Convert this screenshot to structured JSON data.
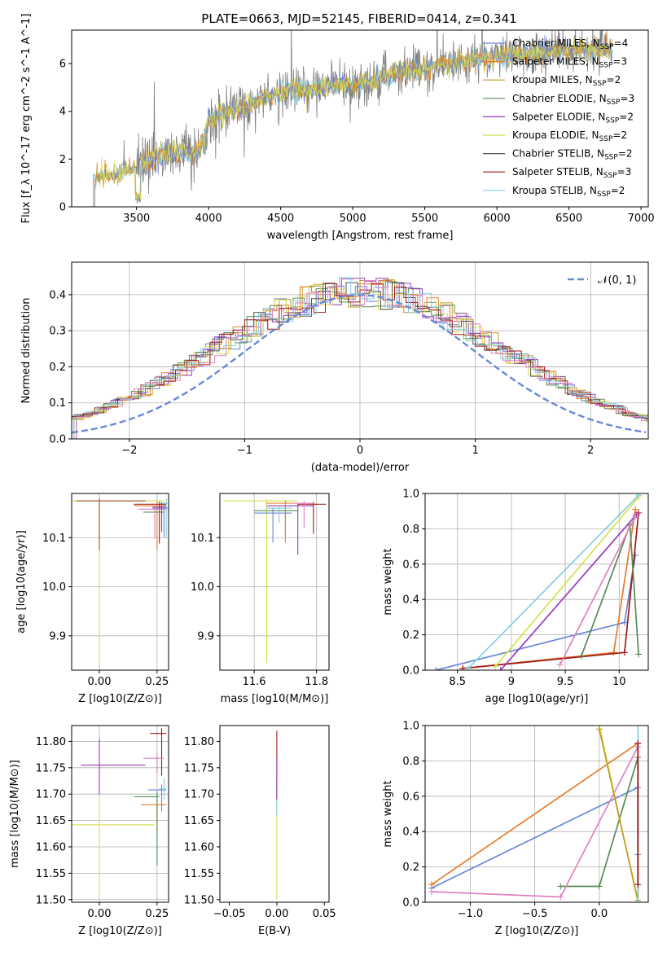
{
  "title": "PLATE=0663, MJD=52145, FIBERID=0414, z=0.341",
  "colors": {
    "chabrier_miles": "#6a88d6",
    "salpeter_miles": "#e87d2b",
    "kroupa_miles": "#c49a20",
    "chabrier_elodie": "#5a8a5a",
    "salpeter_elodie": "#9a3aba",
    "kroupa_elodie": "#d8e050",
    "chabrier_stelib": "#555555",
    "salpeter_stelib": "#a01818",
    "kroupa_stelib": "#80d0e0",
    "extra_pink": "#e080c0",
    "data": "#7f7f7f"
  },
  "chart_data": [
    {
      "id": "spectrum",
      "type": "line",
      "title": "PLATE=0663, MJD=52145, FIBERID=0414, z=0.341",
      "xlabel": "wavelength [Angstrom, rest frame]",
      "ylabel": "Flux [f_λ 10^-17 erg cm^-2 s^-1 A^-1]",
      "xlim": [
        3050,
        7050
      ],
      "ylim": [
        0,
        7.4
      ],
      "xticks": [
        3500,
        4000,
        4500,
        5000,
        5500,
        6000,
        6500,
        7000
      ],
      "yticks": [
        0,
        2,
        4,
        6
      ],
      "grid": false,
      "legend_position": "top-right",
      "legend": [
        {
          "label": "Chabrier MILES, N",
          "sub": "SSP",
          "suffix": "=4",
          "color": "#6a88d6"
        },
        {
          "label": "Salpeter MILES, N",
          "sub": "SSP",
          "suffix": "=3",
          "color": "#e87d2b"
        },
        {
          "label": "Kroupa MILES, N",
          "sub": "SSP",
          "suffix": "=2",
          "color": "#c49a20"
        },
        {
          "label": "Chabrier ELODIE, N",
          "sub": "SSP",
          "suffix": "=3",
          "color": "#5a8a5a"
        },
        {
          "label": "Salpeter ELODIE, N",
          "sub": "SSP",
          "suffix": "=2",
          "color": "#9a3aba"
        },
        {
          "label": "Kroupa ELODIE, N",
          "sub": "SSP",
          "suffix": "=2",
          "color": "#d8e050"
        },
        {
          "label": "Chabrier STELIB, N",
          "sub": "SSP",
          "suffix": "=2",
          "color": "#555555"
        },
        {
          "label": "Salpeter STELIB, N",
          "sub": "SSP",
          "suffix": "=3",
          "color": "#a01818"
        },
        {
          "label": "Kroupa STELIB, N",
          "sub": "SSP",
          "suffix": "=2",
          "color": "#80d0e0"
        }
      ],
      "continuum": {
        "x": [
          3200,
          3300,
          3400,
          3500,
          3600,
          3700,
          3800,
          3900,
          3950,
          4000,
          4100,
          4200,
          4300,
          4400,
          4500,
          4600,
          4700,
          4800,
          4900,
          5000,
          5100,
          5200,
          5300,
          5400,
          5500,
          5600,
          5700,
          5800,
          5900,
          6000,
          6100,
          6200,
          6300,
          6400,
          6500,
          6600,
          6700,
          6800
        ],
        "y": [
          1.2,
          1.35,
          1.45,
          1.7,
          2.0,
          2.2,
          2.3,
          2.2,
          2.5,
          3.6,
          3.9,
          4.1,
          4.3,
          4.6,
          4.8,
          4.9,
          4.9,
          5.0,
          5.1,
          5.1,
          5.2,
          5.4,
          5.6,
          5.7,
          5.8,
          5.9,
          6.0,
          6.1,
          6.2,
          6.3,
          6.35,
          6.4,
          6.45,
          6.5,
          6.55,
          6.6,
          6.6,
          6.6
        ]
      }
    },
    {
      "id": "residuals",
      "type": "bar",
      "xlabel": "(data-model)/error",
      "ylabel": "Normed distribution",
      "xlim": [
        -2.5,
        2.5
      ],
      "ylim": [
        0,
        0.49
      ],
      "xticks": [
        -2,
        -1,
        0,
        1,
        2
      ],
      "yticks": [
        0.0,
        0.1,
        0.2,
        0.3,
        0.4
      ],
      "grid": true,
      "legend_position": "top-right",
      "legend": [
        {
          "label": "𝒩(0, 1)",
          "color": "#6a88d6"
        }
      ],
      "bin_width": 0.1
    },
    {
      "id": "age-Z",
      "type": "scatter",
      "xlabel": "Z [log10(Z/Z⊙)]",
      "ylabel": "age  [log10(age/yr)]",
      "xlim": [
        -0.12,
        0.3
      ],
      "ylim": [
        9.83,
        10.19
      ],
      "xticks": [
        0.0,
        0.25
      ],
      "xtick_labels": [
        "0.00",
        "0.25"
      ],
      "yticks": [
        9.9,
        10.0,
        10.1
      ],
      "grid": true,
      "points": [
        {
          "x": 0.25,
          "y": 10.165,
          "xerr": [
            0.1,
            0.04
          ],
          "yerr": [
            0.09,
            0.01
          ],
          "color": "#e87d2b"
        },
        {
          "x": 0.28,
          "y": 10.16,
          "xerr": [
            0.05,
            0.02
          ],
          "yerr": [
            0.06,
            0.01
          ],
          "color": "#6a88d6"
        },
        {
          "x": 0.26,
          "y": 10.168,
          "xerr": [
            0.11,
            0.03
          ],
          "yerr": [
            0.08,
            0.005
          ],
          "color": "#a01818"
        },
        {
          "x": 0.0,
          "y": 10.175,
          "xerr": [
            0.12,
            0.28
          ],
          "yerr": [
            0.33,
            0.005
          ],
          "color": "#d8e050"
        },
        {
          "x": 0.0,
          "y": 10.175,
          "xerr": [
            0.1,
            0.2
          ],
          "yerr": [
            0.1,
            0.005
          ],
          "color": "#a0522d"
        },
        {
          "x": 0.27,
          "y": 10.152,
          "xerr": [
            0.08,
            0.01
          ],
          "yerr": [
            0.04,
            0.01
          ],
          "color": "#5a8a5a"
        },
        {
          "x": 0.29,
          "y": 10.17,
          "xerr": [
            0.03,
            0.01
          ],
          "yerr": [
            0.07,
            0.01
          ],
          "color": "#80d0e0"
        },
        {
          "x": 0.24,
          "y": 10.158,
          "xerr": [
            0.07,
            0.05
          ],
          "yerr": [
            0.06,
            0.01
          ],
          "color": "#e080c0"
        },
        {
          "x": 0.27,
          "y": 10.162,
          "xerr": [
            0.04,
            0.02
          ],
          "yerr": [
            0.05,
            0.01
          ],
          "color": "#9a3aba"
        }
      ]
    },
    {
      "id": "age-mass",
      "type": "scatter",
      "xlabel": "mass [log10(M/M⊙)]",
      "ylabel": "",
      "xlim": [
        11.49,
        11.84
      ],
      "ylim": [
        9.83,
        10.19
      ],
      "xticks": [
        11.6,
        11.8
      ],
      "xtick_labels": [
        "11.6",
        "11.8"
      ],
      "yticks": [
        9.9,
        10.0,
        10.1
      ],
      "grid": true,
      "points": [
        {
          "x": 11.64,
          "y": 10.175,
          "xerr": [
            0.14,
            0.1
          ],
          "yerr": [
            0.33,
            0.005
          ],
          "color": "#d8e050"
        },
        {
          "x": 11.7,
          "y": 10.155,
          "xerr": [
            0.1,
            0.04
          ],
          "yerr": [
            0.05,
            0.01
          ],
          "color": "#5a8a5a"
        },
        {
          "x": 11.66,
          "y": 10.15,
          "xerr": [
            0.06,
            0.06
          ],
          "yerr": [
            0.06,
            0.01
          ],
          "color": "#6a88d6"
        },
        {
          "x": 11.74,
          "y": 10.165,
          "xerr": [
            0.1,
            0.05
          ],
          "yerr": [
            0.1,
            0.005
          ],
          "color": "#9a3aba"
        },
        {
          "x": 11.79,
          "y": 10.168,
          "xerr": [
            0.05,
            0.04
          ],
          "yerr": [
            0.06,
            0.005
          ],
          "color": "#a01818"
        },
        {
          "x": 11.7,
          "y": 10.17,
          "xerr": [
            0.06,
            0.06
          ],
          "yerr": [
            0.08,
            0.005
          ],
          "color": "#e87d2b"
        },
        {
          "x": 11.76,
          "y": 10.17,
          "xerr": [
            0.04,
            0.03
          ],
          "yerr": [
            0.05,
            0.005
          ],
          "color": "#e080c0"
        },
        {
          "x": 11.68,
          "y": 10.16,
          "xerr": [
            0.04,
            0.04
          ],
          "yerr": [
            0.03,
            0.005
          ],
          "color": "#80d0e0"
        }
      ]
    },
    {
      "id": "weight-age",
      "type": "line",
      "xlabel": "age  [log10(age/yr)]",
      "ylabel": "mass weight",
      "xlim": [
        8.2,
        10.27
      ],
      "ylim": [
        0,
        1.0
      ],
      "xticks": [
        8.5,
        9.0,
        9.5,
        10.0
      ],
      "yticks": [
        0.0,
        0.2,
        0.4,
        0.6,
        0.8,
        1.0
      ],
      "grid": true,
      "series": [
        {
          "x": [
            8.3,
            10.05,
            10.15
          ],
          "y": [
            0.0,
            0.27,
            0.65
          ],
          "color": "#6a88d6"
        },
        {
          "x": [
            8.55,
            9.95,
            10.15
          ],
          "y": [
            0.01,
            0.1,
            0.91
          ],
          "color": "#e87d2b"
        },
        {
          "x": [
            8.55,
            10.05,
            10.18
          ],
          "y": [
            0.01,
            0.1,
            0.89
          ],
          "color": "#a01818"
        },
        {
          "x": [
            9.65,
            10.1,
            10.18
          ],
          "y": [
            0.08,
            0.82,
            0.09
          ],
          "color": "#5a8a5a"
        },
        {
          "x": [
            8.9,
            10.16
          ],
          "y": [
            0.0,
            0.88
          ],
          "color": "#9a3aba"
        },
        {
          "x": [
            8.85,
            10.18
          ],
          "y": [
            0.02,
            0.98
          ],
          "color": "#d8e050"
        },
        {
          "x": [
            8.6,
            10.18
          ],
          "y": [
            0.01,
            0.99
          ],
          "color": "#80d0e0"
        },
        {
          "x": [
            9.45,
            10.15
          ],
          "y": [
            0.03,
            0.87
          ],
          "color": "#e080c0"
        }
      ]
    },
    {
      "id": "mass-Z",
      "type": "scatter",
      "xlabel": "Z [log10(Z/Z⊙)]",
      "ylabel": "mass [log10(M/M⊙)]",
      "xlim": [
        -0.12,
        0.3
      ],
      "ylim": [
        11.495,
        11.83
      ],
      "xticks": [
        0.0,
        0.25
      ],
      "xtick_labels": [
        "0.00",
        "0.25"
      ],
      "yticks": [
        11.5,
        11.55,
        11.6,
        11.65,
        11.7,
        11.75,
        11.8
      ],
      "grid": true,
      "points": [
        {
          "x": 0.0,
          "y": 11.755,
          "xerr": [
            0.08,
            0.2
          ],
          "yerr": [
            0.055,
            0.05
          ],
          "color": "#9a3aba"
        },
        {
          "x": 0.0,
          "y": 11.642,
          "xerr": [
            0.12,
            0.24
          ],
          "yerr": [
            0.14,
            0.05
          ],
          "color": "#d8e050"
        },
        {
          "x": 0.27,
          "y": 11.815,
          "xerr": [
            0.05,
            0.02
          ],
          "yerr": [
            0.08,
            0.01
          ],
          "color": "#a01818"
        },
        {
          "x": 0.25,
          "y": 11.68,
          "xerr": [
            0.07,
            0.04
          ],
          "yerr": [
            0.05,
            0.01
          ],
          "color": "#e87d2b"
        },
        {
          "x": 0.25,
          "y": 11.695,
          "xerr": [
            0.1,
            0.01
          ],
          "yerr": [
            0.13,
            0.01
          ],
          "color": "#5a8a5a"
        },
        {
          "x": 0.27,
          "y": 11.708,
          "xerr": [
            0.06,
            0.02
          ],
          "yerr": [
            0.04,
            0.01
          ],
          "color": "#6a88d6"
        },
        {
          "x": 0.25,
          "y": 11.768,
          "xerr": [
            0.06,
            0.03
          ],
          "yerr": [
            0.03,
            0.01
          ],
          "color": "#e080c0"
        },
        {
          "x": 0.28,
          "y": 11.71,
          "xerr": [
            0.02,
            0.01
          ],
          "yerr": [
            0.02,
            0.02
          ],
          "color": "#80d0e0"
        }
      ]
    },
    {
      "id": "mass-EBV",
      "type": "scatter",
      "xlabel": "E(B-V)",
      "ylabel": "",
      "xlim": [
        -0.06,
        0.055
      ],
      "ylim": [
        11.495,
        11.83
      ],
      "xticks": [
        -0.05,
        0.0,
        0.05
      ],
      "xtick_labels": [
        "−0.05",
        "0.00",
        "0.05"
      ],
      "yticks": [
        11.5,
        11.55,
        11.6,
        11.65,
        11.7,
        11.75,
        11.8
      ],
      "grid": false,
      "points": [
        {
          "x": 0.0,
          "y": 11.7,
          "xerr": [
            0,
            0
          ],
          "yerr": [
            0.2,
            0.01
          ],
          "color": "#d8e050"
        },
        {
          "x": 0.0,
          "y": 11.77,
          "xerr": [
            0,
            0
          ],
          "yerr": [
            0.08,
            0.05
          ],
          "color": "#a01818"
        },
        {
          "x": 0.0,
          "y": 11.71,
          "xerr": [
            0,
            0
          ],
          "yerr": [
            0.05,
            0.02
          ],
          "color": "#80d0e0"
        },
        {
          "x": 0.0,
          "y": 11.74,
          "xerr": [
            0,
            0
          ],
          "yerr": [
            0.05,
            0.03
          ],
          "color": "#9a3aba"
        }
      ]
    },
    {
      "id": "weight-Z",
      "type": "line",
      "xlabel": "Z [log10(Z/Z⊙)]",
      "ylabel": "mass weight",
      "xlim": [
        -1.35,
        0.38
      ],
      "ylim": [
        0,
        1.0
      ],
      "xticks": [
        -1.0,
        -0.5,
        0.0
      ],
      "xtick_labels": [
        "−1.0",
        "−0.5",
        "0.0"
      ],
      "yticks": [
        0.0,
        0.2,
        0.4,
        0.6,
        0.8,
        1.0
      ],
      "grid": true,
      "series": [
        {
          "x": [
            -1.3,
            0.3,
            0.3
          ],
          "y": [
            0.08,
            0.65,
            0.27
          ],
          "color": "#6a88d6"
        },
        {
          "x": [
            -1.3,
            0.3,
            0.3
          ],
          "y": [
            0.1,
            0.9,
            0.0
          ],
          "color": "#e87d2b"
        },
        {
          "x": [
            -0.3,
            0.0,
            0.3,
            0.3
          ],
          "y": [
            0.09,
            0.09,
            0.82,
            0.0
          ],
          "color": "#5a8a5a"
        },
        {
          "x": [
            -1.3,
            -0.3,
            0.3
          ],
          "y": [
            0.06,
            0.03,
            0.88
          ],
          "color": "#e080c0"
        },
        {
          "x": [
            0.0,
            0.3
          ],
          "y": [
            1.0,
            0.0
          ],
          "color": "#d8e050"
        },
        {
          "x": [
            0.0,
            0.3
          ],
          "y": [
            0.98,
            0.01
          ],
          "color": "#c49a20"
        },
        {
          "x": [
            0.3,
            0.3
          ],
          "y": [
            0.0,
            1.0
          ],
          "color": "#80d0e0"
        },
        {
          "x": [
            0.3,
            0.3
          ],
          "y": [
            0.1,
            0.9
          ],
          "color": "#a01818"
        }
      ]
    }
  ]
}
